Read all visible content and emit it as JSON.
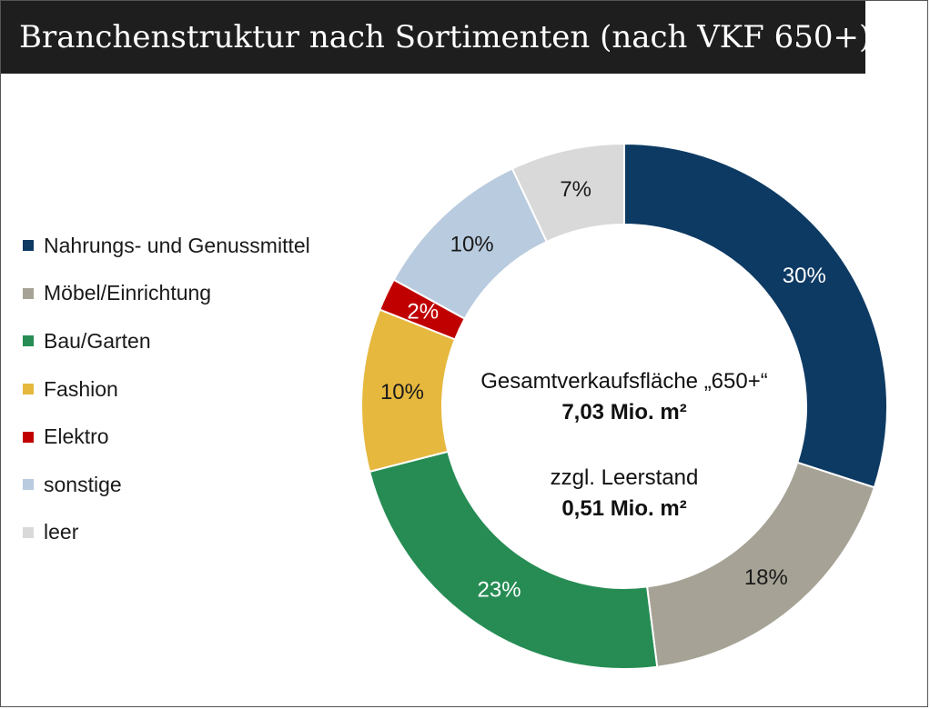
{
  "header": {
    "title": "Branchenstruktur nach Sortimenten (nach VKF 650+)"
  },
  "center": {
    "line1": "Gesamtverkaufsfläche „650+“",
    "line2": "7,03 Mio. m²",
    "line3": "zzgl. Leerstand",
    "line4": "0,51 Mio. m²"
  },
  "chart_data": {
    "type": "pie",
    "style": "donut",
    "legend_position": "left",
    "categories": [
      "Nahrungs- und Genussmittel",
      "Möbel/Einrichtung",
      "Bau/Garten",
      "Fashion",
      "Elektro",
      "sonstige",
      "leer"
    ],
    "values": [
      30,
      18,
      23,
      10,
      2,
      10,
      7
    ],
    "labels": [
      "30%",
      "18%",
      "23%",
      "10%",
      "2%",
      "10%",
      "7%"
    ],
    "colors": [
      "#0d3a63",
      "#a6a295",
      "#268c54",
      "#e6b83e",
      "#c00000",
      "#b9cbde",
      "#d9d9d9"
    ],
    "label_colors": [
      "#ffffff",
      "#1a1a1a",
      "#ffffff",
      "#1a1a1a",
      "#ffffff",
      "#1a1a1a",
      "#1a1a1a"
    ]
  }
}
